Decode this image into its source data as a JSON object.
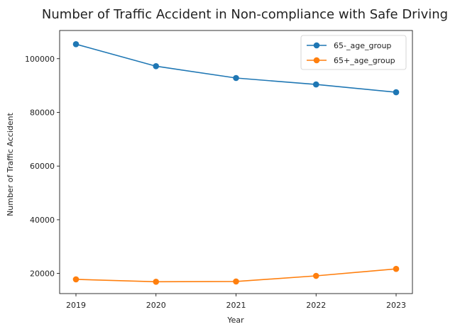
{
  "chart_data": {
    "type": "line",
    "title": "Number of Traffic Accident in Non-compliance with Safe Driving",
    "xlabel": "Year",
    "ylabel": "Number of Traffic Accident",
    "categories": [
      "2019",
      "2020",
      "2021",
      "2022",
      "2023"
    ],
    "ylim": [
      12500,
      110500
    ],
    "yticks": [
      20000,
      40000,
      60000,
      80000,
      100000
    ],
    "ytick_labels": [
      "20000",
      "40000",
      "60000",
      "80000",
      "100000"
    ],
    "grid": false,
    "legend_position": "top-right",
    "series": [
      {
        "name": "65-_age_group",
        "color": "#1f77b4",
        "values": [
          105400,
          97200,
          92800,
          90400,
          87500
        ]
      },
      {
        "name": "65+_age_group",
        "color": "#ff7f0e",
        "values": [
          17800,
          16900,
          17000,
          19100,
          21700
        ]
      }
    ]
  }
}
